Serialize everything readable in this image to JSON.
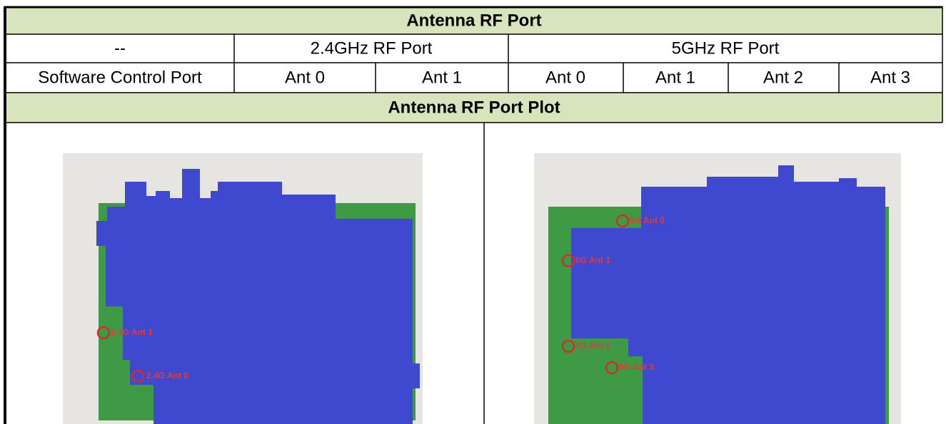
{
  "table": {
    "title": "Antenna RF Port",
    "rows": [
      [
        "--",
        "2.4GHz RF Port",
        "5GHz RF Port"
      ],
      [
        "Software Control Port",
        "Ant 0",
        "Ant 1",
        "Ant 0",
        "Ant 1",
        "Ant 2",
        "Ant 3"
      ]
    ],
    "plot_title": "Antenna RF Port Plot"
  },
  "images": [
    {
      "labels": [
        "2.4G Ant 1",
        "2.4G Ant 0"
      ]
    },
    {
      "labels": [
        "5G Ant 0",
        "5G Ant 1",
        "5G Ant 2",
        "5G Ant 3"
      ]
    }
  ]
}
